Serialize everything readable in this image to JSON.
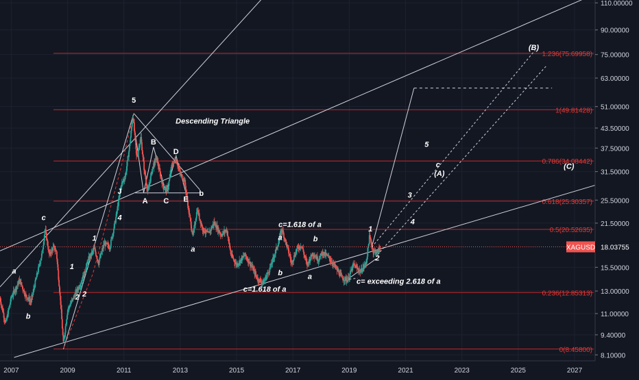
{
  "chart_data": {
    "type": "candlestick",
    "symbol": "XAGUSD",
    "last_price_label": "18.03755",
    "last_price": 18.03755,
    "scale": "log",
    "ylim": [
      8.0,
      113.0
    ],
    "xlim": [
      2006.6,
      2027.9
    ],
    "grid": true,
    "price_ticks": [
      {
        "v": 110.0,
        "label": "110.00000"
      },
      {
        "v": 90.0,
        "label": "90.00000"
      },
      {
        "v": 75.0,
        "label": "75.00000"
      },
      {
        "v": 63.0,
        "label": "63.00000"
      },
      {
        "v": 51.0,
        "label": "51.00000"
      },
      {
        "v": 43.5,
        "label": "43.50000"
      },
      {
        "v": 37.5,
        "label": "37.50000"
      },
      {
        "v": 31.5,
        "label": "31.50000"
      },
      {
        "v": 25.5,
        "label": "25.50000"
      },
      {
        "v": 21.5,
        "label": "21.50000"
      },
      {
        "v": 15.5,
        "label": "15.50000"
      },
      {
        "v": 13.0,
        "label": "13.00000"
      },
      {
        "v": 11.0,
        "label": "11.00000"
      },
      {
        "v": 9.4,
        "label": "9.40000"
      },
      {
        "v": 8.1,
        "label": "8.10000"
      }
    ],
    "time_ticks": [
      {
        "v": 2007.0,
        "label": "2007"
      },
      {
        "v": 2009.0,
        "label": "2009"
      },
      {
        "v": 2011.0,
        "label": "2011"
      },
      {
        "v": 2013.0,
        "label": "2013"
      },
      {
        "v": 2015.0,
        "label": "2015"
      },
      {
        "v": 2017.0,
        "label": "2017"
      },
      {
        "v": 2019.0,
        "label": "2019"
      },
      {
        "v": 2021.0,
        "label": "2021"
      },
      {
        "v": 2023.0,
        "label": "2023"
      },
      {
        "v": 2025.0,
        "label": "2025"
      },
      {
        "v": 2027.0,
        "label": "2027"
      }
    ],
    "price_path": [
      [
        2006.6,
        12.3
      ],
      [
        2006.8,
        10.2
      ],
      [
        2007.0,
        12.4
      ],
      [
        2007.3,
        14.1
      ],
      [
        2007.5,
        12.6
      ],
      [
        2007.7,
        12.0
      ],
      [
        2007.9,
        14.5
      ],
      [
        2008.1,
        17.3
      ],
      [
        2008.2,
        20.6
      ],
      [
        2008.35,
        17.0
      ],
      [
        2008.5,
        18.0
      ],
      [
        2008.6,
        17.4
      ],
      [
        2008.75,
        12.0
      ],
      [
        2008.85,
        8.8
      ],
      [
        2009.0,
        11.3
      ],
      [
        2009.25,
        12.6
      ],
      [
        2009.5,
        14.0
      ],
      [
        2009.75,
        16.5
      ],
      [
        2009.95,
        17.8
      ],
      [
        2010.1,
        16.0
      ],
      [
        2010.3,
        18.5
      ],
      [
        2010.5,
        18.0
      ],
      [
        2010.7,
        22.0
      ],
      [
        2010.9,
        28.5
      ],
      [
        2011.05,
        30.5
      ],
      [
        2011.2,
        38.0
      ],
      [
        2011.32,
        48.0
      ],
      [
        2011.45,
        35.0
      ],
      [
        2011.6,
        40.5
      ],
      [
        2011.72,
        32.0
      ],
      [
        2011.85,
        27.0
      ],
      [
        2012.0,
        32.0
      ],
      [
        2012.15,
        35.0
      ],
      [
        2012.4,
        28.0
      ],
      [
        2012.55,
        27.5
      ],
      [
        2012.7,
        33.0
      ],
      [
        2012.85,
        34.5
      ],
      [
        2013.0,
        31.0
      ],
      [
        2013.15,
        29.5
      ],
      [
        2013.3,
        23.5
      ],
      [
        2013.45,
        19.5
      ],
      [
        2013.6,
        23.8
      ],
      [
        2013.8,
        20.5
      ],
      [
        2014.0,
        19.8
      ],
      [
        2014.2,
        21.6
      ],
      [
        2014.45,
        19.7
      ],
      [
        2014.65,
        20.5
      ],
      [
        2014.8,
        17.0
      ],
      [
        2015.0,
        15.8
      ],
      [
        2015.3,
        17.0
      ],
      [
        2015.55,
        15.5
      ],
      [
        2015.75,
        14.2
      ],
      [
        2015.95,
        13.8
      ],
      [
        2016.2,
        15.5
      ],
      [
        2016.5,
        18.8
      ],
      [
        2016.6,
        20.7
      ],
      [
        2016.8,
        18.0
      ],
      [
        2016.95,
        16.0
      ],
      [
        2017.15,
        17.8
      ],
      [
        2017.3,
        18.3
      ],
      [
        2017.5,
        15.8
      ],
      [
        2017.7,
        17.2
      ],
      [
        2017.9,
        16.4
      ],
      [
        2018.05,
        17.3
      ],
      [
        2018.3,
        16.6
      ],
      [
        2018.55,
        15.3
      ],
      [
        2018.75,
        14.3
      ],
      [
        2018.95,
        14.1
      ],
      [
        2019.15,
        15.8
      ],
      [
        2019.4,
        15.0
      ],
      [
        2019.6,
        16.0
      ],
      [
        2019.72,
        19.5
      ],
      [
        2019.85,
        17.5
      ],
      [
        2020.0,
        17.3
      ],
      [
        2020.1,
        18.04
      ]
    ],
    "fib_levels": [
      {
        "value": 75.69958,
        "label": "1.236(75.69958)"
      },
      {
        "value": 49.81428,
        "label": "1(49.81428)"
      },
      {
        "value": 34.08442,
        "label": "0.786(34.08442)"
      },
      {
        "value": 25.30357,
        "label": "0.618(25.30357)"
      },
      {
        "value": 20.52635,
        "label": "0.5(20.52635)"
      },
      {
        "value": 12.85313,
        "label": "0.236(12.85313)"
      },
      {
        "value": 8.458,
        "label": "0(8.45800)"
      }
    ],
    "annotations": {
      "wave_labels": [
        {
          "text": "a",
          "t": 2007.1,
          "p": 14.8,
          "italic": true
        },
        {
          "text": "b",
          "t": 2007.6,
          "p": 10.6,
          "italic": true
        },
        {
          "text": "c",
          "t": 2008.15,
          "p": 22.0,
          "italic": true
        },
        {
          "text": "1",
          "t": 2009.15,
          "p": 15.3,
          "italic": true
        },
        {
          "text": "2",
          "t": 2009.35,
          "p": 12.2,
          "italic": true
        },
        {
          "text": "2",
          "t": 2009.6,
          "p": 12.5,
          "italic": true
        },
        {
          "text": "1",
          "t": 2009.95,
          "p": 18.9,
          "italic": true
        },
        {
          "text": "J",
          "t": 2010.85,
          "p": 26.7,
          "italic": false
        },
        {
          "text": "4",
          "t": 2010.85,
          "p": 22.0,
          "italic": true
        },
        {
          "text": "5",
          "t": 2011.35,
          "p": 52.5,
          "italic": false
        },
        {
          "text": "A",
          "t": 2011.75,
          "p": 24.9,
          "italic": false
        },
        {
          "text": "B",
          "t": 2012.05,
          "p": 38.5,
          "italic": false
        },
        {
          "text": "C",
          "t": 2012.5,
          "p": 24.9,
          "italic": false
        },
        {
          "text": "D",
          "t": 2012.85,
          "p": 35.9,
          "italic": false
        },
        {
          "text": "E",
          "t": 2013.2,
          "p": 25.2,
          "italic": false
        },
        {
          "text": "b",
          "t": 2013.75,
          "p": 26.3,
          "italic": false
        },
        {
          "text": "a",
          "t": 2013.45,
          "p": 17.4,
          "italic": true
        },
        {
          "text": "a",
          "t": 2016.55,
          "p": 19.0,
          "italic": true
        },
        {
          "text": "b",
          "t": 2016.55,
          "p": 14.6,
          "italic": true
        },
        {
          "text": "b",
          "t": 2017.8,
          "p": 18.8,
          "italic": true
        },
        {
          "text": "a",
          "t": 2017.6,
          "p": 14.2,
          "italic": true
        },
        {
          "text": "1",
          "t": 2019.75,
          "p": 20.2,
          "italic": true
        },
        {
          "text": "2",
          "t": 2020.0,
          "p": 16.3,
          "italic": true
        },
        {
          "text": "3",
          "t": 2021.15,
          "p": 26.0,
          "italic": true
        },
        {
          "text": "4",
          "t": 2021.25,
          "p": 21.3,
          "italic": true
        },
        {
          "text": "5",
          "t": 2021.75,
          "p": 37.8,
          "italic": true
        },
        {
          "text": "c",
          "t": 2022.15,
          "p": 32.6,
          "italic": true
        },
        {
          "text": "(A)",
          "t": 2022.2,
          "p": 30.5,
          "italic": true
        },
        {
          "text": "(B)",
          "t": 2025.55,
          "p": 77.5,
          "italic": true
        },
        {
          "text": "(C)",
          "t": 2026.8,
          "p": 32.2,
          "italic": true
        }
      ],
      "text_notes": [
        {
          "text": "Descending Triangle",
          "t": 2014.15,
          "p": 45.0
        },
        {
          "text": "c=1.618 of a",
          "t": 2017.25,
          "p": 20.9
        },
        {
          "text": "c=1.618 of a",
          "t": 2016.0,
          "p": 12.95
        },
        {
          "text": "c= exceeding 2.618 of a",
          "t": 2020.75,
          "p": 13.7
        }
      ]
    }
  }
}
